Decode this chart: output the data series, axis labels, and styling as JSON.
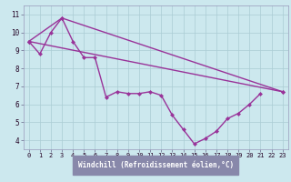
{
  "xlabel": "Windchill (Refroidissement éolien,°C)",
  "background_color": "#cce8ee",
  "grid_color": "#aaccd4",
  "line_color": "#993399",
  "label_bg_color": "#8888aa",
  "xlim": [
    -0.5,
    23.5
  ],
  "ylim": [
    3.5,
    11.5
  ],
  "xticks": [
    0,
    1,
    2,
    3,
    4,
    5,
    6,
    7,
    8,
    9,
    10,
    11,
    12,
    13,
    14,
    15,
    16,
    17,
    18,
    19,
    20,
    21,
    22,
    23
  ],
  "yticks": [
    4,
    5,
    6,
    7,
    8,
    9,
    10,
    11
  ],
  "series1_x": [
    0,
    1,
    2,
    3,
    4,
    5,
    6,
    7,
    8,
    9,
    10,
    11,
    12,
    13,
    14,
    15,
    16,
    17,
    18,
    19,
    20,
    21
  ],
  "series1_y": [
    9.5,
    8.8,
    10.0,
    10.8,
    9.5,
    8.6,
    8.6,
    6.4,
    6.7,
    6.6,
    6.6,
    6.7,
    6.5,
    5.4,
    4.6,
    3.8,
    4.1,
    4.5,
    5.2,
    5.5,
    6.0,
    6.6
  ],
  "series2_x": [
    0,
    23
  ],
  "series2_y": [
    9.5,
    6.7
  ],
  "series3_x": [
    0,
    3,
    23
  ],
  "series3_y": [
    9.5,
    10.8,
    6.7
  ],
  "marker_size": 2.5,
  "line_width": 1.0
}
